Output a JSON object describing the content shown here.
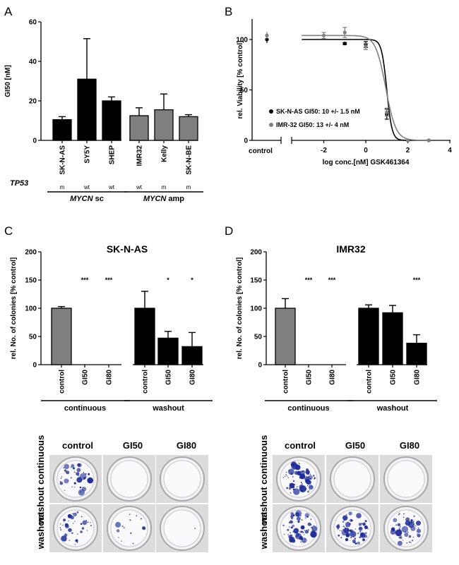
{
  "panels": {
    "a": "A",
    "b": "B",
    "c": "C",
    "d": "D"
  },
  "colors": {
    "black": "#000000",
    "grey": "#7f7f7f",
    "blue": "#1d2b9a"
  },
  "chart_data": [
    {
      "id": "A",
      "type": "bar",
      "ylabel": "GI50 [nM]",
      "ylim": [
        0,
        60
      ],
      "yticks": [
        0,
        20,
        40,
        60
      ],
      "categories": [
        "SK-N-AS",
        "SY5Y",
        "SHEP",
        "IMR32",
        "Kelly",
        "SK-N-BE"
      ],
      "values": [
        10.5,
        31,
        20,
        12.5,
        15.5,
        12
      ],
      "errors": [
        1.5,
        20.5,
        2,
        4,
        8,
        1
      ],
      "bar_colors": [
        "#000000",
        "#000000",
        "#000000",
        "#7f7f7f",
        "#7f7f7f",
        "#7f7f7f"
      ],
      "tp53_label": "TP53",
      "tp53": [
        "m",
        "wt",
        "wt",
        "wt",
        "m",
        "m"
      ],
      "groups": [
        {
          "label": "MYCN sc",
          "span": [
            0,
            2
          ]
        },
        {
          "label": "MYCN amp",
          "span": [
            3,
            5
          ]
        }
      ]
    },
    {
      "id": "B",
      "type": "line",
      "xlabel": "log conc.[nM] GSK461364",
      "ylabel": "rel. Viability [% control]",
      "xlim": [
        -3,
        4
      ],
      "ylim": [
        0,
        100
      ],
      "xticks": [
        -2,
        0,
        2,
        4
      ],
      "yticks": [
        0,
        50,
        100
      ],
      "control_label": "control",
      "series": [
        {
          "name": "SK-N-AS",
          "legend": "SK-N-AS GI50: 10 +/- 1.5 nM",
          "color": "#000000",
          "x": [
            -1,
            0,
            1,
            2,
            3
          ],
          "y": [
            96,
            95,
            26,
            0,
            0
          ],
          "err": [
            1,
            3,
            5,
            0,
            0
          ],
          "control_y": 100,
          "top": 100,
          "bottom": 0,
          "logec50": 1.0,
          "hill": 3.5
        },
        {
          "name": "IMR-32",
          "legend": "IMR-32 GI50: 13 +/- 4 nM",
          "color": "#7f7f7f",
          "x": [
            -2,
            -1,
            0,
            1,
            2,
            3
          ],
          "y": [
            104,
            107,
            93,
            28,
            0,
            0
          ],
          "err": [
            3,
            5,
            3,
            4,
            0,
            0
          ],
          "control_y": 104,
          "top": 104,
          "bottom": 0,
          "logec50": 0.95,
          "hill": 1.8
        }
      ]
    },
    {
      "id": "C",
      "type": "bar",
      "title": "SK-N-AS",
      "ylabel": "rel. No. of colonies [% control]",
      "ylim": [
        0,
        200
      ],
      "yticks": [
        0,
        50,
        100,
        150,
        200
      ],
      "categories": [
        "control",
        "GI50",
        "GI80",
        "control",
        "GI50",
        "GI80"
      ],
      "values": [
        100,
        0,
        0,
        100,
        47,
        32
      ],
      "errors": [
        3,
        0,
        0,
        30,
        12,
        25
      ],
      "bar_colors": [
        "#7f7f7f",
        "#7f7f7f",
        "#7f7f7f",
        "#000000",
        "#000000",
        "#000000"
      ],
      "significance": [
        "",
        "***",
        "***",
        "",
        "*",
        "*"
      ],
      "groups": [
        {
          "label": "continuous",
          "span": [
            0,
            2
          ]
        },
        {
          "label": "washout",
          "span": [
            3,
            5
          ]
        }
      ]
    },
    {
      "id": "D",
      "type": "bar",
      "title": "IMR32",
      "ylabel": "rel. No. of colonies [% control]",
      "ylim": [
        0,
        200
      ],
      "yticks": [
        0,
        50,
        100,
        150,
        200
      ],
      "categories": [
        "control",
        "GI50",
        "GI80",
        "control",
        "GI50",
        "GI80"
      ],
      "values": [
        100,
        0,
        0,
        100,
        92,
        38
      ],
      "errors": [
        17,
        0,
        0,
        6,
        13,
        15
      ],
      "bar_colors": [
        "#7f7f7f",
        "#7f7f7f",
        "#7f7f7f",
        "#000000",
        "#000000",
        "#000000"
      ],
      "significance": [
        "",
        "***",
        "***",
        "",
        "",
        "***"
      ],
      "groups": [
        {
          "label": "continuous",
          "span": [
            0,
            2
          ]
        },
        {
          "label": "washout",
          "span": [
            3,
            5
          ]
        }
      ]
    }
  ],
  "photos": {
    "column_headers": [
      "control",
      "GI50",
      "GI80"
    ],
    "row_labels": [
      "washout continuous",
      "washout"
    ]
  }
}
